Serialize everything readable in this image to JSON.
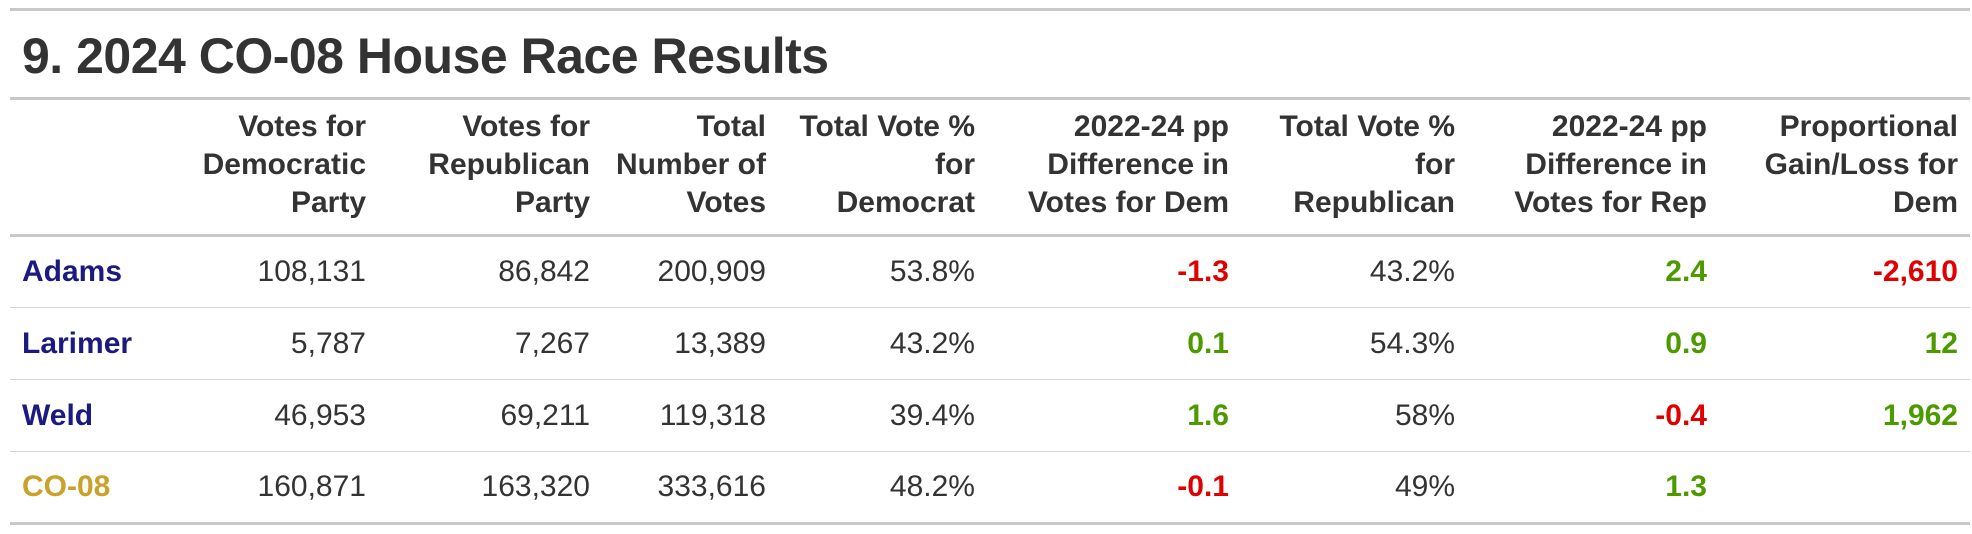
{
  "colors": {
    "county_name": "#1a1a80",
    "total_name": "#c9a227",
    "negative": "#e00000",
    "positive": "#4d9a00",
    "text": "#333333",
    "rule": "#c8c8c8"
  },
  "chart_data": {
    "type": "table",
    "title": "9. 2024 CO-08 House Race Results",
    "columns": [
      "",
      "Votes for\nDemocratic\nParty",
      "Votes for\nRepublican\nParty",
      "Total\nNumber of\nVotes",
      "Total Vote %\nfor\nDemocrat",
      "2022-24 pp\nDifference in\nVotes for Dem",
      "Total Vote %\nfor\nRepublican",
      "2022-24 pp\nDifference in\nVotes for Rep",
      "Proportional\nGain/Loss for\nDem"
    ],
    "rows": [
      {
        "name": "Adams",
        "kind": "county",
        "cells": [
          "108,131",
          "86,842",
          "200,909",
          "53.8%",
          "-1.3",
          "43.2%",
          "2.4",
          "-2,610"
        ]
      },
      {
        "name": "Larimer",
        "kind": "county",
        "cells": [
          "5,787",
          "7,267",
          "13,389",
          "43.2%",
          "0.1",
          "54.3%",
          "0.9",
          "12"
        ]
      },
      {
        "name": "Weld",
        "kind": "county",
        "cells": [
          "46,953",
          "69,211",
          "119,318",
          "39.4%",
          "1.6",
          "58%",
          "-0.4",
          "1,962"
        ]
      },
      {
        "name": "CO-08",
        "kind": "total",
        "cells": [
          "160,871",
          "163,320",
          "333,616",
          "48.2%",
          "-0.1",
          "49%",
          "1.3",
          ""
        ]
      }
    ],
    "signed_columns": [
      5,
      7,
      8
    ]
  }
}
